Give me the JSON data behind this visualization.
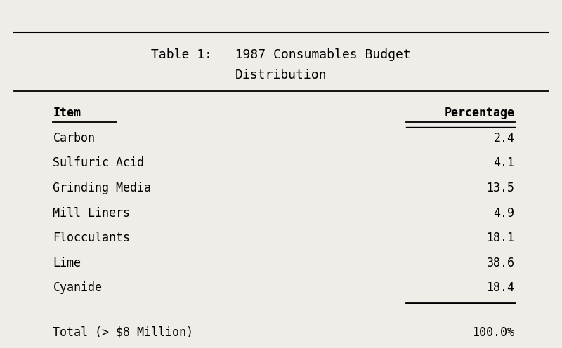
{
  "title_line1": "Table 1:   1987 Consumables Budget",
  "title_line2": "Distribution",
  "col1_header": "Item",
  "col2_header": "Percentage",
  "items": [
    [
      "Carbon",
      "2.4"
    ],
    [
      "Sulfuric Acid",
      "4.1"
    ],
    [
      "Grinding Media",
      "13.5"
    ],
    [
      "Mill Liners",
      "4.9"
    ],
    [
      "Flocculants",
      "18.1"
    ],
    [
      "Lime",
      "38.6"
    ],
    [
      "Cyanide",
      "18.4"
    ]
  ],
  "total_label": "Total (> $8 Million)",
  "total_value": "100.0%",
  "bg_color": "#f0ede8",
  "text_color": "#000000",
  "font_family": "monospace",
  "title_fontsize": 13,
  "header_fontsize": 12,
  "body_fontsize": 12,
  "total_fontsize": 12
}
